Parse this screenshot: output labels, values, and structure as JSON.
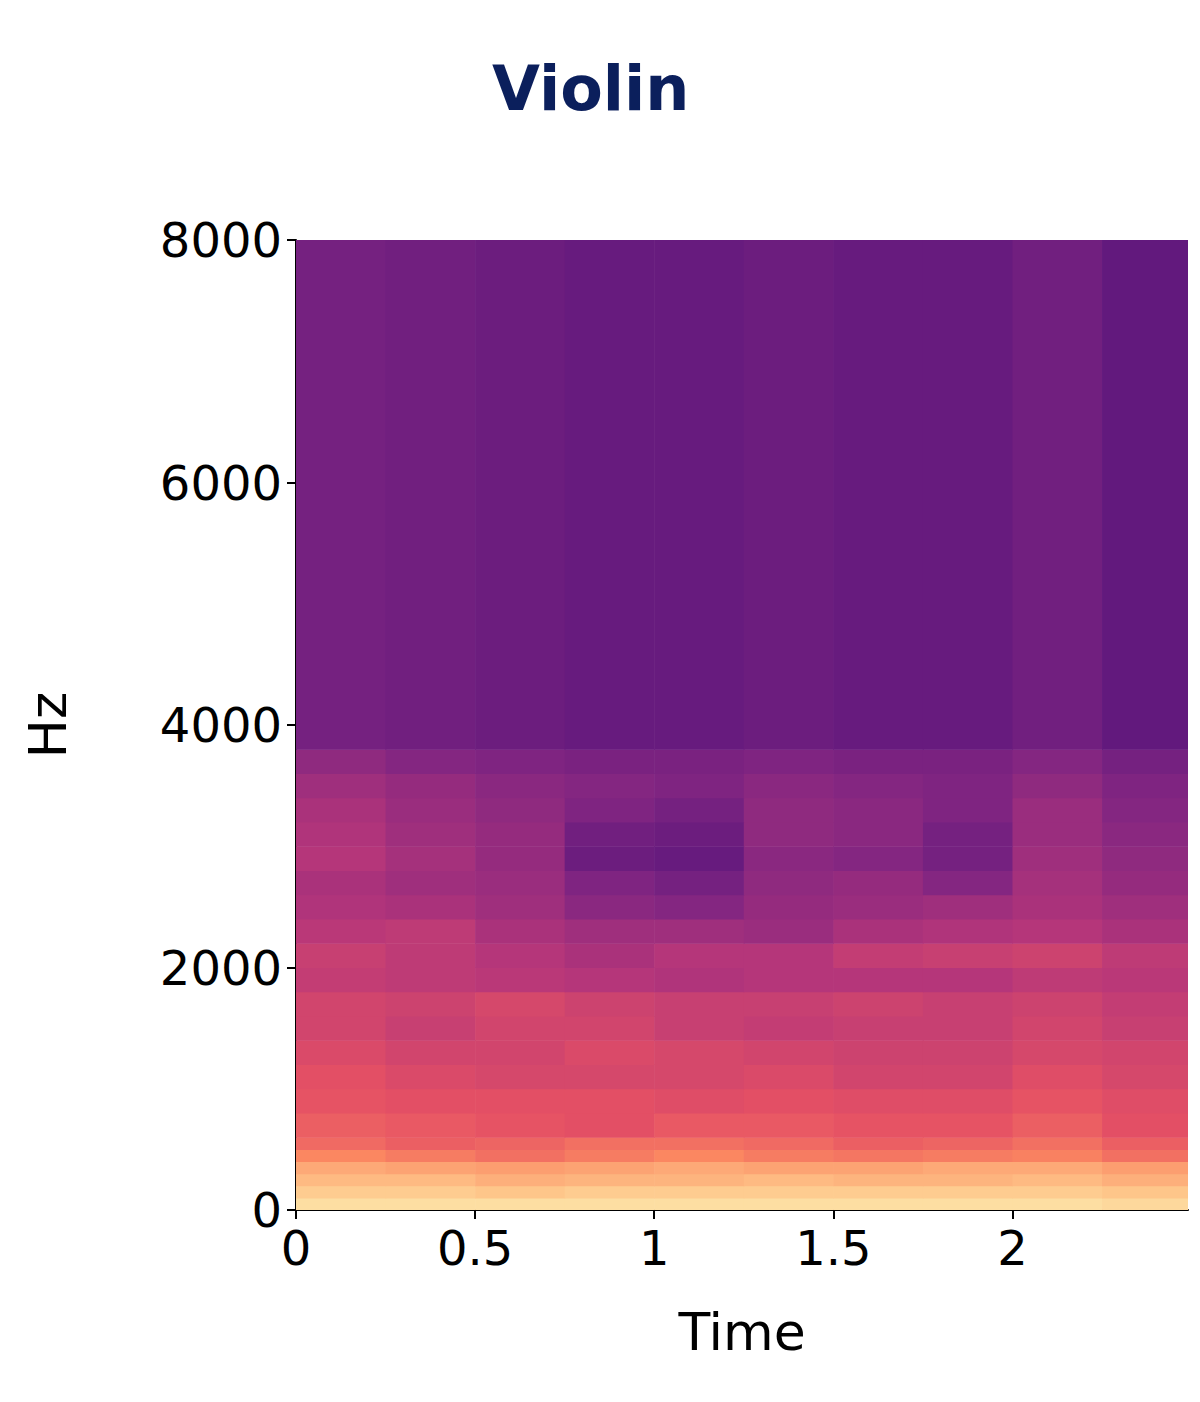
{
  "chart_data": {
    "type": "heatmap",
    "title": "Violin",
    "x_label": "Time",
    "y_label": "Hz",
    "xlim": [
      0,
      2.49
    ],
    "xticks": [
      0,
      0.5,
      1,
      1.5,
      2
    ],
    "ylim": [
      0,
      8000
    ],
    "yticks": [
      0,
      2000,
      4000,
      6000,
      8000
    ],
    "zlim": [
      -80,
      0
    ],
    "time_bins": [
      0,
      0.25,
      0.5,
      0.75,
      1,
      1.25,
      1.5,
      1.75,
      2,
      2.25,
      2.49
    ],
    "freq_bins": [
      0,
      100,
      200,
      300,
      400,
      500,
      600,
      800,
      1000,
      1200,
      1400,
      1600,
      1800,
      2000,
      2200,
      2400,
      2600,
      2800,
      3000,
      3200,
      3400,
      3600,
      3800,
      8000
    ],
    "cells": [
      [
        -5,
        -5,
        -5,
        -5,
        -5,
        -5,
        -5,
        -5,
        -5,
        -6
      ],
      [
        -8,
        -8,
        -9,
        -8,
        -8,
        -8,
        -8,
        -8,
        -8,
        -9
      ],
      [
        -11,
        -11,
        -13,
        -12,
        -12,
        -11,
        -12,
        -12,
        -11,
        -13
      ],
      [
        -14,
        -15,
        -16,
        -15,
        -14,
        -15,
        -15,
        -14,
        -14,
        -16
      ],
      [
        -20,
        -22,
        -24,
        -22,
        -20,
        -22,
        -23,
        -22,
        -21,
        -24
      ],
      [
        -25,
        -27,
        -26,
        -24,
        -24,
        -25,
        -27,
        -26,
        -24,
        -27
      ],
      [
        -27,
        -28,
        -29,
        -30,
        -28,
        -28,
        -29,
        -29,
        -27,
        -30
      ],
      [
        -29,
        -30,
        -30,
        -30,
        -31,
        -30,
        -31,
        -31,
        -29,
        -31
      ],
      [
        -30,
        -32,
        -33,
        -33,
        -33,
        -32,
        -34,
        -34,
        -31,
        -33
      ],
      [
        -32,
        -34,
        -34,
        -32,
        -33,
        -34,
        -35,
        -35,
        -33,
        -34
      ],
      [
        -34,
        -36,
        -34,
        -34,
        -36,
        -37,
        -36,
        -36,
        -34,
        -36
      ],
      [
        -34,
        -35,
        -33,
        -35,
        -36,
        -36,
        -35,
        -36,
        -35,
        -37
      ],
      [
        -37,
        -38,
        -39,
        -40,
        -41,
        -40,
        -40,
        -40,
        -38,
        -39
      ],
      [
        -36,
        -38,
        -40,
        -42,
        -40,
        -40,
        -37,
        -36,
        -35,
        -38
      ],
      [
        -39,
        -38,
        -42,
        -44,
        -44,
        -45,
        -42,
        -41,
        -40,
        -42
      ],
      [
        -41,
        -42,
        -44,
        -48,
        -49,
        -46,
        -45,
        -44,
        -42,
        -44
      ],
      [
        -42,
        -44,
        -45,
        -50,
        -52,
        -47,
        -46,
        -49,
        -43,
        -46
      ],
      [
        -40,
        -43,
        -46,
        -54,
        -55,
        -48,
        -49,
        -52,
        -44,
        -47
      ],
      [
        -41,
        -44,
        -46,
        -53,
        -54,
        -47,
        -48,
        -52,
        -45,
        -48
      ],
      [
        -42,
        -45,
        -47,
        -50,
        -52,
        -47,
        -48,
        -50,
        -45,
        -49
      ],
      [
        -44,
        -46,
        -48,
        -49,
        -50,
        -48,
        -49,
        -50,
        -47,
        -50
      ],
      [
        -47,
        -49,
        -50,
        -51,
        -51,
        -50,
        -51,
        -51,
        -49,
        -52
      ],
      [
        -52,
        -53,
        -54,
        -55,
        -55,
        -54,
        -55,
        -55,
        -53,
        -56
      ],
      [
        -80,
        -80,
        -80,
        -80,
        -80,
        -80,
        -80,
        -80,
        -80,
        -80
      ]
    ]
  }
}
